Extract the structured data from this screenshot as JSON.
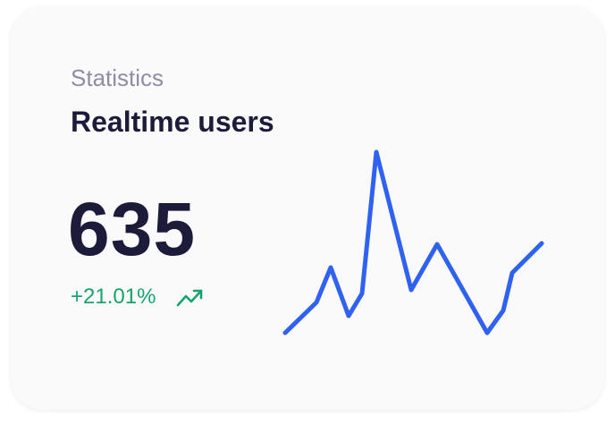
{
  "card": {
    "label": "Statistics",
    "title": "Realtime users",
    "value": "635",
    "change": "+21.01%"
  },
  "chart_data": {
    "type": "line",
    "x": [
      0,
      35,
      51,
      71,
      86,
      102,
      141,
      170,
      226,
      244,
      254,
      287
    ],
    "series": [
      {
        "color": "#2f62f0",
        "values": [
          0,
          34,
          73,
          19,
          44,
          202,
          48,
          99,
          0,
          25,
          67,
          100
        ]
      }
    ]
  }
}
